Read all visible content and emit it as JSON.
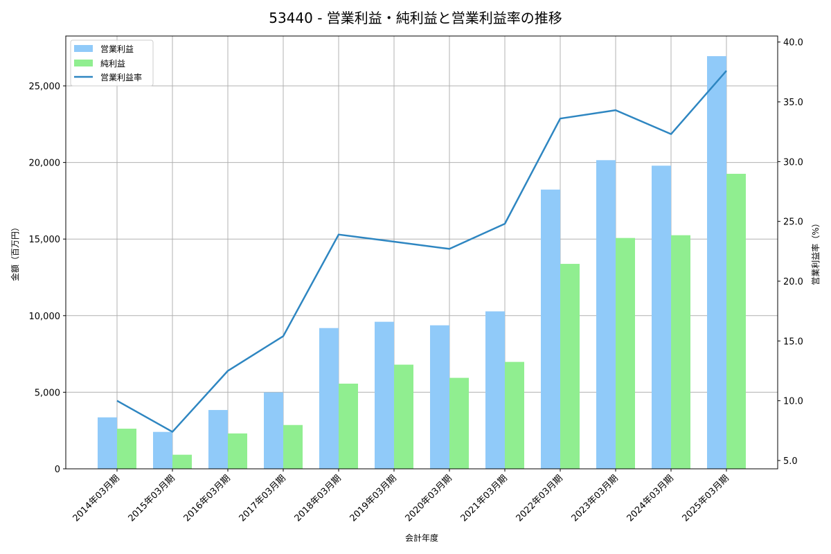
{
  "chart_data": {
    "type": "bar",
    "title": "53440 - 営業利益・純利益と営業利益率の推移",
    "xlabel": "会計年度",
    "ylabel": "金額（百万円）",
    "y2label": "営業利益率（%）",
    "categories": [
      "2014年03月期",
      "2015年03月期",
      "2016年03月期",
      "2017年03月期",
      "2018年03月期",
      "2019年03月期",
      "2020年03月期",
      "2021年03月期",
      "2022年03月期",
      "2023年03月期",
      "2024年03月期",
      "2025年03月期"
    ],
    "series": [
      {
        "name": "営業利益",
        "type": "bar",
        "axis": "left",
        "color": "#90CAF9",
        "values": [
          3360,
          2410,
          3840,
          4990,
          9190,
          9600,
          9370,
          10280,
          18230,
          20150,
          19790,
          26940
        ]
      },
      {
        "name": "純利益",
        "type": "bar",
        "axis": "left",
        "color": "#90EE90",
        "values": [
          2620,
          920,
          2310,
          2860,
          5560,
          6800,
          5940,
          6980,
          13380,
          15070,
          15250,
          19260
        ]
      },
      {
        "name": "営業利益率",
        "type": "line",
        "axis": "right",
        "color": "#2E86C1",
        "values": [
          10.0,
          7.4,
          12.5,
          15.4,
          23.9,
          23.3,
          22.7,
          24.8,
          33.6,
          34.3,
          32.3,
          37.6
        ]
      }
    ],
    "ylim": [
      0,
      28200
    ],
    "y2lim": [
      4.2,
      40.5
    ],
    "yticks": [
      0,
      5000,
      10000,
      15000,
      20000,
      25000
    ],
    "ytick_labels": [
      "0",
      "5,000",
      "10,000",
      "15,000",
      "20,000",
      "25,000"
    ],
    "y2ticks": [
      5.0,
      10.0,
      15.0,
      20.0,
      25.0,
      30.0,
      35.0,
      40.0
    ],
    "y2tick_labels": [
      "5.0",
      "10.0",
      "15.0",
      "20.0",
      "25.0",
      "30.0",
      "35.0",
      "40.0"
    ],
    "grid": true,
    "legend_position": "upper left"
  },
  "legend": {
    "items": [
      {
        "label": "営業利益",
        "kind": "patch",
        "color": "#90CAF9"
      },
      {
        "label": "純利益",
        "kind": "patch",
        "color": "#90EE90"
      },
      {
        "label": "営業利益率",
        "kind": "line",
        "color": "#2E86C1"
      }
    ]
  }
}
